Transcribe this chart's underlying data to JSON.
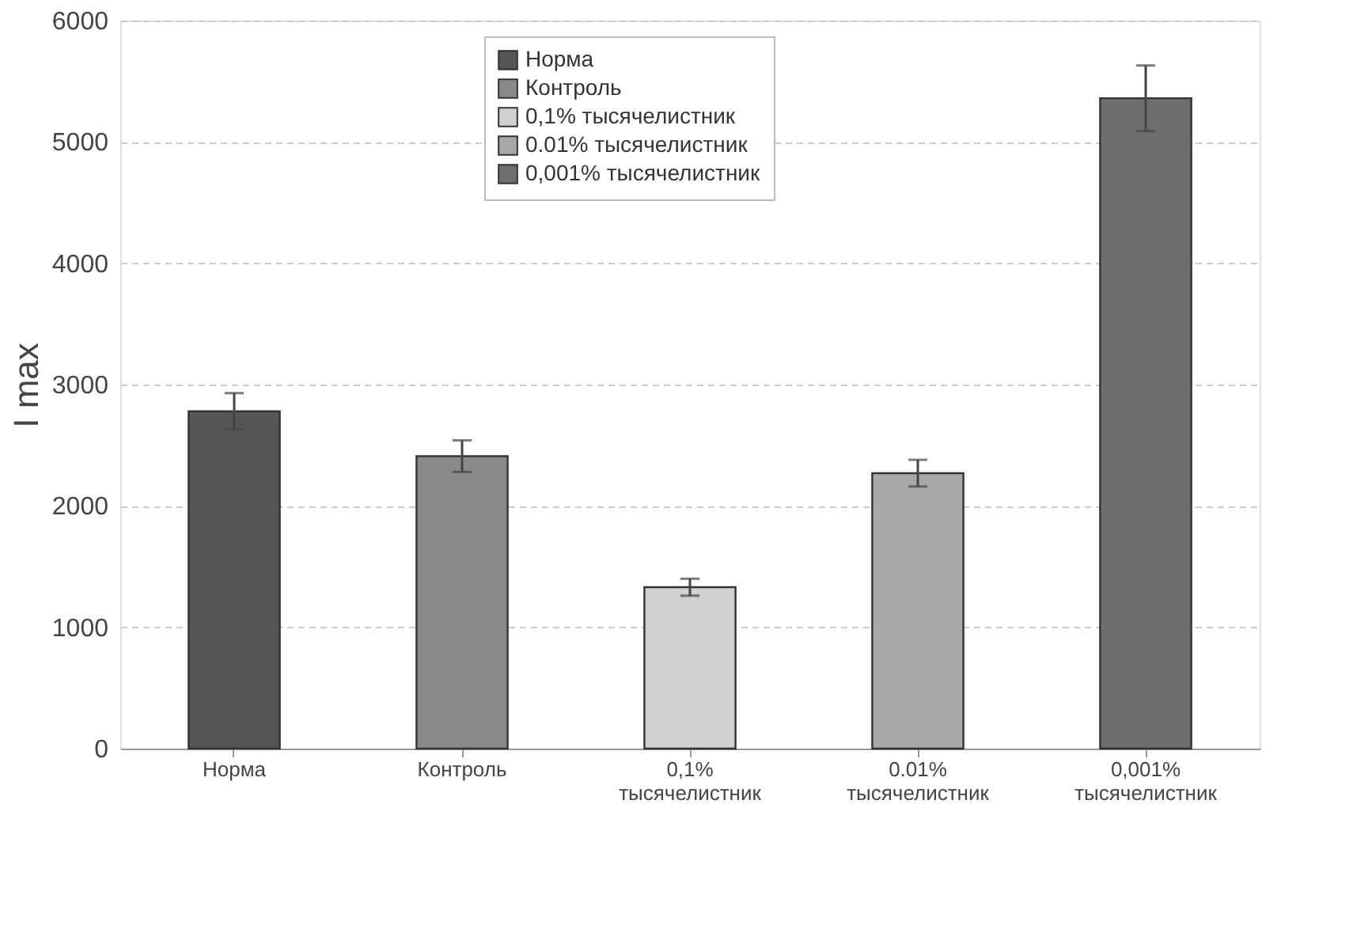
{
  "chart_data": {
    "type": "bar",
    "ylabel": "I max",
    "categories": [
      "Норма",
      "Контроль",
      "0,1%\nтысячелистник",
      "0.01%\nтысячелистник",
      "0,001%\nтысячелистник"
    ],
    "series": [
      {
        "name": "Норма",
        "color": "#555555",
        "values": [
          2780,
          null,
          null,
          null,
          null
        ],
        "errors": [
          150,
          null,
          null,
          null,
          null
        ]
      },
      {
        "name": "Контроль",
        "color": "#8a8a8a",
        "values": [
          null,
          2410,
          null,
          null,
          null
        ],
        "errors": [
          null,
          130,
          null,
          null,
          null
        ]
      },
      {
        "name": "0,1%  тысячелистник",
        "color": "#d0d0d0",
        "values": [
          null,
          null,
          1330,
          null,
          null
        ],
        "errors": [
          null,
          null,
          70,
          null,
          null
        ]
      },
      {
        "name": "0.01% тысячелистник",
        "color": "#a8a8a8",
        "values": [
          null,
          null,
          null,
          2270,
          null
        ],
        "errors": [
          null,
          null,
          null,
          110,
          null
        ]
      },
      {
        "name": "0,001% тысячелистник",
        "color": "#6e6e6e",
        "values": [
          null,
          null,
          null,
          null,
          5360
        ],
        "errors": [
          null,
          null,
          null,
          null,
          270
        ]
      }
    ],
    "ylim": [
      0,
      6000
    ],
    "yticks": [
      0,
      1000,
      2000,
      3000,
      4000,
      5000,
      6000
    ],
    "grid": "y",
    "legend": "top"
  }
}
